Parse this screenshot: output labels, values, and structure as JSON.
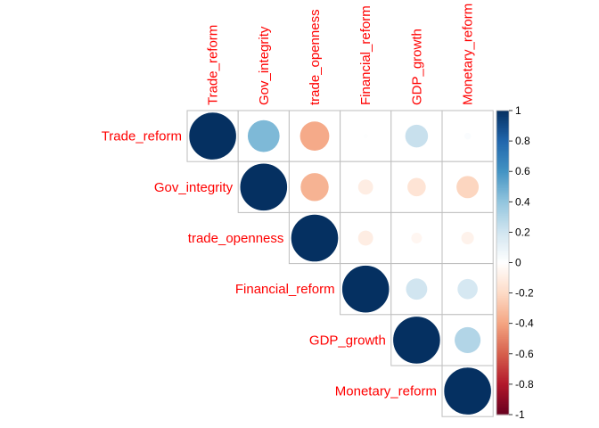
{
  "chart_data": {
    "type": "heatmap",
    "subtype": "correlation-circles-upper",
    "variables": [
      "Trade_reform",
      "Gov_integrity",
      "trade_openness",
      "Financial_reform",
      "GDP_growth",
      "Monetary_reform"
    ],
    "matrix": [
      [
        1.0,
        0.45,
        -0.38,
        0.01,
        0.23,
        0.02
      ],
      [
        0.45,
        1.0,
        -0.35,
        -0.1,
        -0.15,
        -0.22
      ],
      [
        -0.38,
        -0.35,
        1.0,
        -0.1,
        -0.05,
        -0.07
      ],
      [
        0.01,
        -0.1,
        -0.1,
        1.0,
        0.2,
        0.18
      ],
      [
        0.23,
        -0.15,
        -0.05,
        0.2,
        1.0,
        0.3
      ],
      [
        0.02,
        -0.22,
        -0.07,
        0.18,
        0.3,
        1.0
      ]
    ],
    "colorbar": {
      "range": [
        -1,
        1
      ],
      "ticks": [
        "1",
        "0.8",
        "0.6",
        "0.4",
        "0.2",
        "0",
        "-0.2",
        "-0.4",
        "-0.6",
        "-0.8",
        "-1"
      ]
    },
    "colors": {
      "label": "#ff0000",
      "grid": "#bebebe",
      "negative_end": "#67001f",
      "positive_end": "#053061"
    }
  }
}
